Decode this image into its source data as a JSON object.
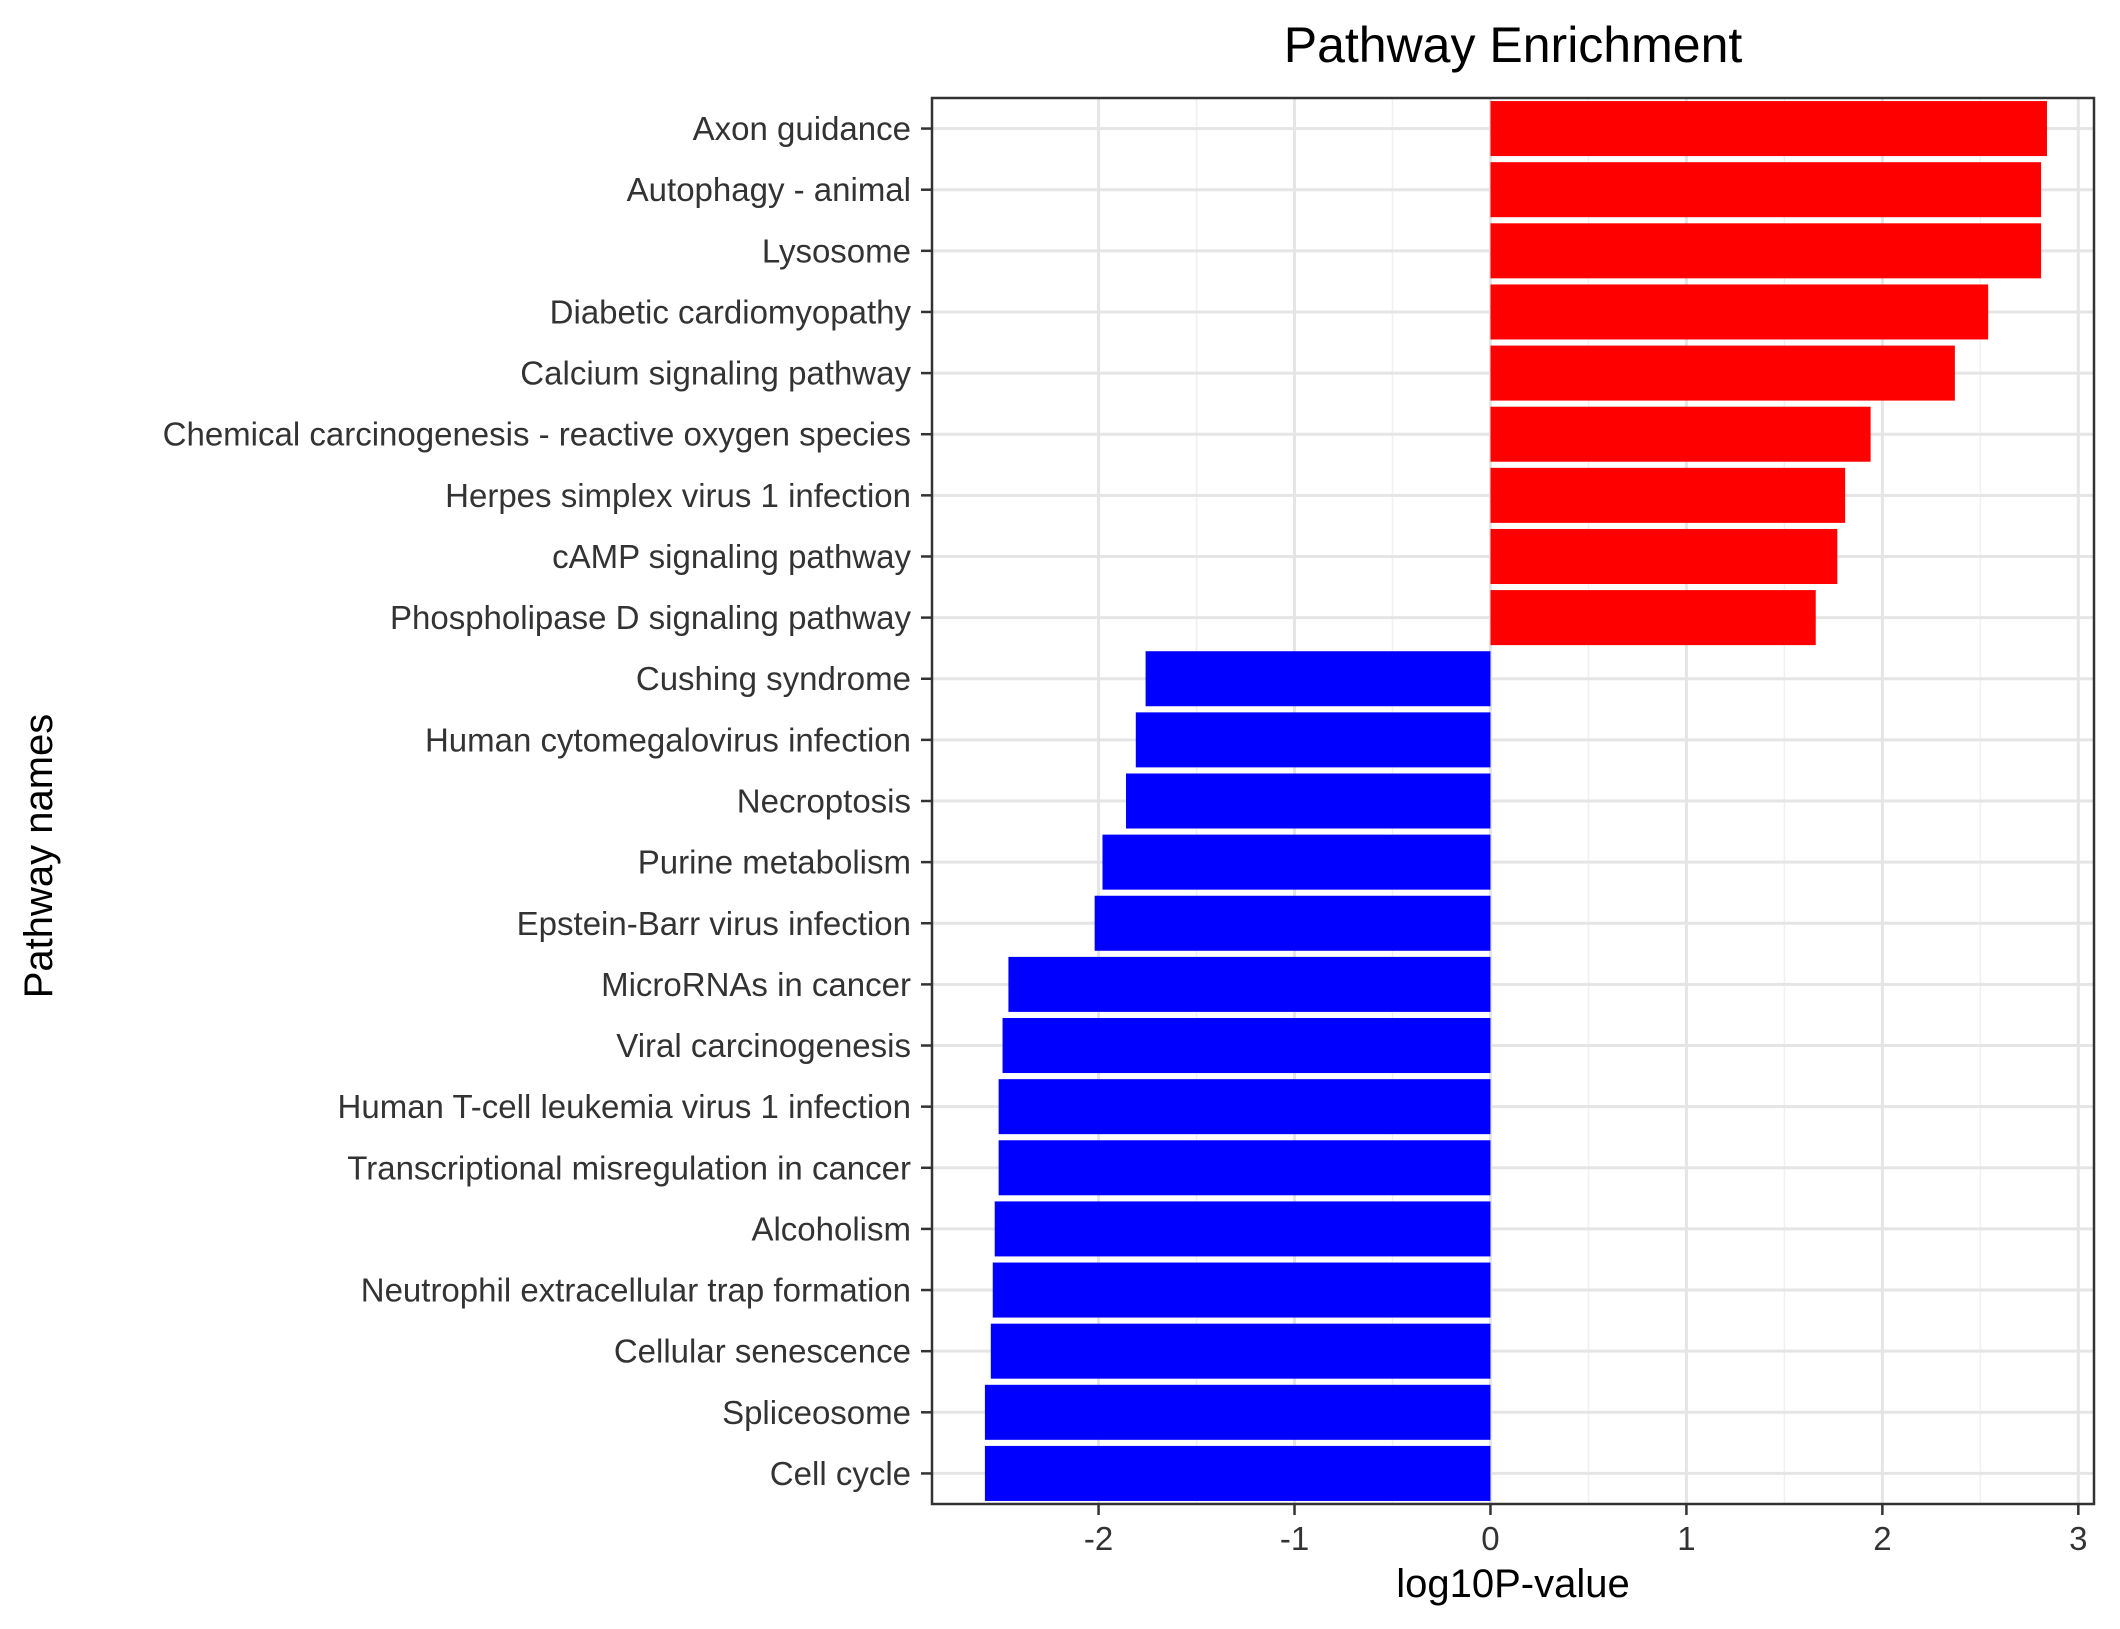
{
  "chart_data": {
    "type": "bar",
    "orientation": "horizontal",
    "title": "Pathway Enrichment",
    "xlabel": "log10P-value",
    "ylabel": "Pathway names",
    "xlim": [
      -2.85,
      3.08
    ],
    "x_ticks": [
      -2,
      -1,
      0,
      1,
      2,
      3
    ],
    "grid": true,
    "legend": "none",
    "colors": {
      "positive": "#ff0000",
      "negative": "#0000ff"
    },
    "categories": [
      "Axon guidance",
      "Autophagy - animal",
      "Lysosome",
      "Diabetic cardiomyopathy",
      "Calcium signaling pathway",
      "Chemical carcinogenesis - reactive oxygen species",
      "Herpes simplex virus 1 infection",
      "cAMP signaling pathway",
      "Phospholipase D signaling pathway",
      "Cushing syndrome",
      "Human cytomegalovirus infection",
      "Necroptosis",
      "Purine metabolism",
      "Epstein-Barr virus infection",
      "MicroRNAs in cancer",
      "Viral carcinogenesis",
      "Human T-cell leukemia virus 1 infection",
      "Transcriptional misregulation in cancer",
      "Alcoholism",
      "Neutrophil extracellular trap formation",
      "Cellular senescence",
      "Spliceosome",
      "Cell cycle"
    ],
    "values": [
      2.84,
      2.81,
      2.81,
      2.54,
      2.37,
      1.94,
      1.81,
      1.77,
      1.66,
      -1.76,
      -1.81,
      -1.86,
      -1.98,
      -2.02,
      -2.46,
      -2.49,
      -2.51,
      -2.51,
      -2.53,
      -2.54,
      -2.55,
      -2.58,
      -2.58
    ]
  }
}
